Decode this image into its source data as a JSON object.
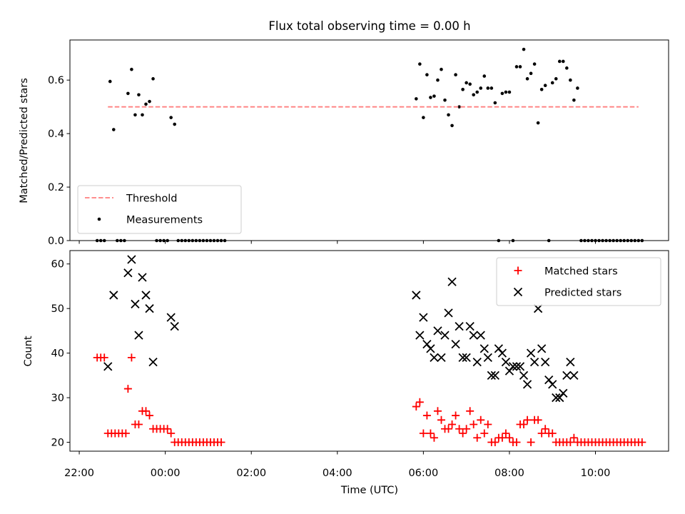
{
  "title": "Flux total observing time = 0.00 h",
  "xlabel": "Time (UTC)",
  "x_ticks": [
    "22:00",
    "00:00",
    "02:00",
    "04:00",
    "06:00",
    "08:00",
    "10:00"
  ],
  "chart_data": [
    {
      "type": "scatter",
      "ylabel": "Matched/Predicted stars",
      "xlim": [
        "21:47",
        "11:42"
      ],
      "ylim": [
        0,
        0.75
      ],
      "yticks": [
        0.0,
        0.2,
        0.4,
        0.6
      ],
      "ytick_labels": [
        "0.0",
        "0.2",
        "0.4",
        "0.6"
      ],
      "grid": false,
      "legend": "lower-left",
      "legend_entries": {
        "threshold": "Threshold",
        "measurements": "Measurements"
      },
      "colors": {
        "threshold": "#ff7f7f",
        "measurements": "#000000"
      },
      "threshold": {
        "value": 0.5,
        "x_start": "22:40",
        "x_end": "11:00"
      },
      "measurements": [
        [
          "22:25",
          0
        ],
        [
          "22:30",
          0
        ],
        [
          "22:35",
          0
        ],
        [
          "22:43",
          0.595
        ],
        [
          "22:48",
          0.415
        ],
        [
          "22:53",
          0
        ],
        [
          "22:58",
          0
        ],
        [
          "23:03",
          0
        ],
        [
          "23:08",
          0.55
        ],
        [
          "23:13",
          0.64
        ],
        [
          "23:18",
          0.47
        ],
        [
          "23:23",
          0.545
        ],
        [
          "23:28",
          0.47
        ],
        [
          "23:33",
          0.51
        ],
        [
          "23:38",
          0.52
        ],
        [
          "23:43",
          0.605
        ],
        [
          "23:48",
          0
        ],
        [
          "23:53",
          0
        ],
        [
          "23:58",
          0
        ],
        [
          "00:03",
          0
        ],
        [
          "00:08",
          0.46
        ],
        [
          "00:13",
          0.435
        ],
        [
          "00:18",
          0
        ],
        [
          "00:23",
          0
        ],
        [
          "00:28",
          0
        ],
        [
          "00:33",
          0
        ],
        [
          "00:38",
          0
        ],
        [
          "00:43",
          0
        ],
        [
          "00:48",
          0
        ],
        [
          "00:53",
          0
        ],
        [
          "00:58",
          0
        ],
        [
          "01:03",
          0
        ],
        [
          "01:08",
          0
        ],
        [
          "01:13",
          0
        ],
        [
          "01:18",
          0
        ],
        [
          "01:23",
          0
        ],
        [
          "05:50",
          0.53
        ],
        [
          "05:55",
          0.66
        ],
        [
          "06:00",
          0.46
        ],
        [
          "06:05",
          0.62
        ],
        [
          "06:10",
          0.535
        ],
        [
          "06:15",
          0.54
        ],
        [
          "06:20",
          0.6
        ],
        [
          "06:25",
          0.64
        ],
        [
          "06:30",
          0.525
        ],
        [
          "06:35",
          0.47
        ],
        [
          "06:40",
          0.43
        ],
        [
          "06:45",
          0.62
        ],
        [
          "06:50",
          0.5
        ],
        [
          "06:55",
          0.565
        ],
        [
          "07:00",
          0.59
        ],
        [
          "07:05",
          0.585
        ],
        [
          "07:10",
          0.545
        ],
        [
          "07:15",
          0.555
        ],
        [
          "07:20",
          0.57
        ],
        [
          "07:25",
          0.615
        ],
        [
          "07:30",
          0.57
        ],
        [
          "07:35",
          0.57
        ],
        [
          "07:40",
          0.515
        ],
        [
          "07:45",
          0
        ],
        [
          "07:50",
          0.55
        ],
        [
          "07:55",
          0.555
        ],
        [
          "08:00",
          0.555
        ],
        [
          "08:05",
          0
        ],
        [
          "08:10",
          0.65
        ],
        [
          "08:15",
          0.65
        ],
        [
          "08:20",
          0.715
        ],
        [
          "08:25",
          0.605
        ],
        [
          "08:30",
          0.625
        ],
        [
          "08:35",
          0.66
        ],
        [
          "08:40",
          0.44
        ],
        [
          "08:45",
          0.565
        ],
        [
          "08:50",
          0.58
        ],
        [
          "08:55",
          0
        ],
        [
          "09:00",
          0.59
        ],
        [
          "09:05",
          0.605
        ],
        [
          "09:10",
          0.67
        ],
        [
          "09:15",
          0.67
        ],
        [
          "09:20",
          0.645
        ],
        [
          "09:25",
          0.6
        ],
        [
          "09:30",
          0.525
        ],
        [
          "09:35",
          0.57
        ],
        [
          "09:40",
          0
        ],
        [
          "09:45",
          0
        ],
        [
          "09:50",
          0
        ],
        [
          "09:55",
          0
        ],
        [
          "10:00",
          0
        ],
        [
          "10:05",
          0
        ],
        [
          "10:10",
          0
        ],
        [
          "10:15",
          0
        ],
        [
          "10:20",
          0
        ],
        [
          "10:25",
          0
        ],
        [
          "10:30",
          0
        ],
        [
          "10:35",
          0
        ],
        [
          "10:40",
          0
        ],
        [
          "10:45",
          0
        ],
        [
          "10:50",
          0
        ],
        [
          "10:55",
          0
        ],
        [
          "11:00",
          0
        ],
        [
          "11:05",
          0
        ]
      ]
    },
    {
      "type": "scatter",
      "ylabel": "Count",
      "xlim": [
        "21:47",
        "11:42"
      ],
      "ylim": [
        18,
        63
      ],
      "yticks": [
        20,
        30,
        40,
        50,
        60
      ],
      "ytick_labels": [
        "20",
        "30",
        "40",
        "50",
        "60"
      ],
      "grid": false,
      "legend": "upper-right",
      "colors": {
        "matched": "#ff0000",
        "predicted": "#000000"
      },
      "series": [
        {
          "name": "Matched stars",
          "marker": "plus",
          "points": [
            [
              "22:25",
              39
            ],
            [
              "22:30",
              39
            ],
            [
              "22:35",
              39
            ],
            [
              "22:40",
              22
            ],
            [
              "22:45",
              22
            ],
            [
              "22:50",
              22
            ],
            [
              "22:55",
              22
            ],
            [
              "23:00",
              22
            ],
            [
              "23:05",
              22
            ],
            [
              "23:08",
              32
            ],
            [
              "23:13",
              39
            ],
            [
              "23:18",
              24
            ],
            [
              "23:23",
              24
            ],
            [
              "23:28",
              27
            ],
            [
              "23:33",
              27
            ],
            [
              "23:38",
              26
            ],
            [
              "23:43",
              23
            ],
            [
              "23:48",
              23
            ],
            [
              "23:53",
              23
            ],
            [
              "23:58",
              23
            ],
            [
              "00:03",
              23
            ],
            [
              "00:08",
              22
            ],
            [
              "00:13",
              20
            ],
            [
              "00:18",
              20
            ],
            [
              "00:23",
              20
            ],
            [
              "00:28",
              20
            ],
            [
              "00:33",
              20
            ],
            [
              "00:38",
              20
            ],
            [
              "00:43",
              20
            ],
            [
              "00:48",
              20
            ],
            [
              "00:53",
              20
            ],
            [
              "00:58",
              20
            ],
            [
              "01:03",
              20
            ],
            [
              "01:08",
              20
            ],
            [
              "01:13",
              20
            ],
            [
              "01:18",
              20
            ],
            [
              "05:50",
              28
            ],
            [
              "05:55",
              29
            ],
            [
              "06:00",
              22
            ],
            [
              "06:05",
              26
            ],
            [
              "06:10",
              22
            ],
            [
              "06:15",
              21
            ],
            [
              "06:20",
              27
            ],
            [
              "06:25",
              25
            ],
            [
              "06:30",
              23
            ],
            [
              "06:35",
              23
            ],
            [
              "06:40",
              24
            ],
            [
              "06:45",
              26
            ],
            [
              "06:50",
              23
            ],
            [
              "06:55",
              22
            ],
            [
              "07:00",
              23
            ],
            [
              "07:05",
              27
            ],
            [
              "07:10",
              24
            ],
            [
              "07:15",
              21
            ],
            [
              "07:20",
              25
            ],
            [
              "07:25",
              22
            ],
            [
              "07:30",
              24
            ],
            [
              "07:35",
              20
            ],
            [
              "07:40",
              20
            ],
            [
              "07:45",
              21
            ],
            [
              "07:50",
              21
            ],
            [
              "07:55",
              22
            ],
            [
              "08:00",
              21
            ],
            [
              "08:05",
              20
            ],
            [
              "08:10",
              20
            ],
            [
              "08:15",
              24
            ],
            [
              "08:20",
              24
            ],
            [
              "08:25",
              25
            ],
            [
              "08:30",
              20
            ],
            [
              "08:35",
              25
            ],
            [
              "08:40",
              25
            ],
            [
              "08:45",
              22
            ],
            [
              "08:50",
              23
            ],
            [
              "08:55",
              22
            ],
            [
              "09:00",
              22
            ],
            [
              "09:05",
              20
            ],
            [
              "09:10",
              20
            ],
            [
              "09:15",
              20
            ],
            [
              "09:20",
              20
            ],
            [
              "09:25",
              20
            ],
            [
              "09:30",
              21
            ],
            [
              "09:35",
              20
            ],
            [
              "09:40",
              20
            ],
            [
              "09:45",
              20
            ],
            [
              "09:50",
              20
            ],
            [
              "09:55",
              20
            ],
            [
              "10:00",
              20
            ],
            [
              "10:05",
              20
            ],
            [
              "10:10",
              20
            ],
            [
              "10:15",
              20
            ],
            [
              "10:20",
              20
            ],
            [
              "10:25",
              20
            ],
            [
              "10:30",
              20
            ],
            [
              "10:35",
              20
            ],
            [
              "10:40",
              20
            ],
            [
              "10:45",
              20
            ],
            [
              "10:50",
              20
            ],
            [
              "10:55",
              20
            ],
            [
              "11:00",
              20
            ],
            [
              "11:05",
              20
            ]
          ]
        },
        {
          "name": "Predicted stars",
          "marker": "x",
          "points": [
            [
              "22:40",
              37
            ],
            [
              "22:48",
              53
            ],
            [
              "23:08",
              58
            ],
            [
              "23:13",
              61
            ],
            [
              "23:18",
              51
            ],
            [
              "23:23",
              44
            ],
            [
              "23:28",
              57
            ],
            [
              "23:33",
              53
            ],
            [
              "23:38",
              50
            ],
            [
              "23:43",
              38
            ],
            [
              "00:08",
              48
            ],
            [
              "00:13",
              46
            ],
            [
              "05:50",
              53
            ],
            [
              "05:55",
              44
            ],
            [
              "06:00",
              48
            ],
            [
              "06:05",
              42
            ],
            [
              "06:10",
              41
            ],
            [
              "06:15",
              39
            ],
            [
              "06:20",
              45
            ],
            [
              "06:25",
              39
            ],
            [
              "06:30",
              44
            ],
            [
              "06:35",
              49
            ],
            [
              "06:40",
              56
            ],
            [
              "06:45",
              42
            ],
            [
              "06:50",
              46
            ],
            [
              "06:55",
              39
            ],
            [
              "07:00",
              39
            ],
            [
              "07:05",
              46
            ],
            [
              "07:10",
              44
            ],
            [
              "07:15",
              38
            ],
            [
              "07:20",
              44
            ],
            [
              "07:25",
              41
            ],
            [
              "07:30",
              39
            ],
            [
              "07:35",
              35
            ],
            [
              "07:40",
              35
            ],
            [
              "07:45",
              41
            ],
            [
              "07:50",
              40
            ],
            [
              "07:55",
              38
            ],
            [
              "08:00",
              36
            ],
            [
              "08:05",
              37
            ],
            [
              "08:10",
              37
            ],
            [
              "08:15",
              37
            ],
            [
              "08:20",
              35
            ],
            [
              "08:25",
              33
            ],
            [
              "08:30",
              40
            ],
            [
              "08:35",
              38
            ],
            [
              "08:40",
              50
            ],
            [
              "08:45",
              41
            ],
            [
              "08:50",
              38
            ],
            [
              "08:55",
              34
            ],
            [
              "09:00",
              33
            ],
            [
              "09:05",
              30
            ],
            [
              "09:10",
              30
            ],
            [
              "09:15",
              31
            ],
            [
              "09:20",
              35
            ],
            [
              "09:25",
              38
            ],
            [
              "09:30",
              35
            ]
          ]
        }
      ]
    }
  ]
}
